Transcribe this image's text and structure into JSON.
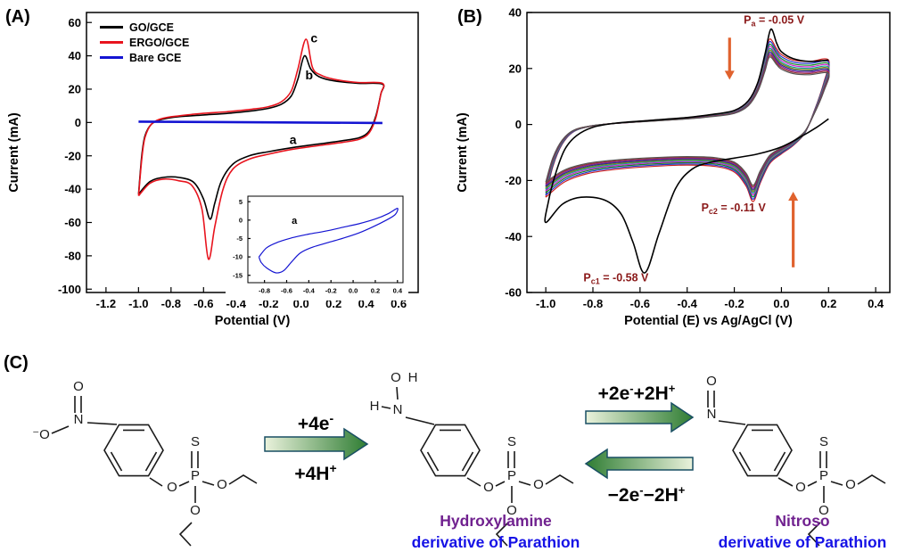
{
  "panels": {
    "a_label": "(A)",
    "b_label": "(B)",
    "c_label": "(C)"
  },
  "chart_data": [
    {
      "type": "line",
      "title": "",
      "xlabel": "Potential (V)",
      "ylabel": "Current (mA)",
      "xlim": [
        -1.32,
        0.72
      ],
      "ylim": [
        -102,
        66
      ],
      "xticks": [
        -1.2,
        -1.0,
        -0.8,
        -0.6,
        -0.4,
        -0.2,
        0.0,
        0.2,
        0.4,
        0.6
      ],
      "xtick_labels": [
        "-1.2",
        "-1.0",
        "-0.8",
        "-0.6",
        "-0.4",
        "-0.2",
        "0.0",
        "0.2",
        "0.4",
        "0.6"
      ],
      "yticks": [
        -100,
        -80,
        -60,
        -40,
        -20,
        0,
        20,
        40,
        60
      ],
      "ytick_labels": [
        "-100",
        "-80",
        "-60",
        "-40",
        "-20",
        "0",
        "20",
        "40",
        "60"
      ],
      "legend": [
        {
          "label": "GO/GCE",
          "color": "#000000"
        },
        {
          "label": "ERGO/GCE",
          "color": "#e8141e"
        },
        {
          "label": "Bare GCE",
          "color": "#1414d2"
        }
      ],
      "series": [
        {
          "name": "GO/GCE",
          "color": "#000000",
          "width": 1.6,
          "points": [
            [
              -1.0,
              -43
            ],
            [
              -0.98,
              -20
            ],
            [
              -0.96,
              -8
            ],
            [
              -0.92,
              -1
            ],
            [
              -0.85,
              2
            ],
            [
              -0.75,
              3.5
            ],
            [
              -0.6,
              4.5
            ],
            [
              -0.45,
              5.5
            ],
            [
              -0.3,
              7
            ],
            [
              -0.2,
              8.5
            ],
            [
              -0.12,
              11
            ],
            [
              -0.06,
              16
            ],
            [
              -0.02,
              26
            ],
            [
              0.02,
              40
            ],
            [
              0.06,
              32
            ],
            [
              0.11,
              27.5
            ],
            [
              0.2,
              25
            ],
            [
              0.35,
              23.5
            ],
            [
              0.5,
              23
            ],
            [
              0.49,
              17
            ],
            [
              0.46,
              4
            ],
            [
              0.42,
              -5
            ],
            [
              0.36,
              -9
            ],
            [
              0.25,
              -11
            ],
            [
              0.1,
              -13
            ],
            [
              -0.05,
              -15
            ],
            [
              -0.2,
              -17.5
            ],
            [
              -0.32,
              -20
            ],
            [
              -0.42,
              -25
            ],
            [
              -0.49,
              -35
            ],
            [
              -0.53,
              -48
            ],
            [
              -0.56,
              -58
            ],
            [
              -0.6,
              -46
            ],
            [
              -0.66,
              -36
            ],
            [
              -0.75,
              -33
            ],
            [
              -0.85,
              -33
            ],
            [
              -0.93,
              -35.5
            ],
            [
              -1.0,
              -43
            ]
          ]
        },
        {
          "name": "ERGO/GCE",
          "color": "#e8141e",
          "width": 1.6,
          "points": [
            [
              -1.0,
              -44
            ],
            [
              -0.98,
              -22
            ],
            [
              -0.96,
              -9
            ],
            [
              -0.92,
              -1
            ],
            [
              -0.85,
              2.5
            ],
            [
              -0.75,
              4
            ],
            [
              -0.6,
              5.5
            ],
            [
              -0.45,
              6.5
            ],
            [
              -0.3,
              8
            ],
            [
              -0.2,
              9.5
            ],
            [
              -0.12,
              12.5
            ],
            [
              -0.06,
              19
            ],
            [
              -0.02,
              32
            ],
            [
              0.03,
              50
            ],
            [
              0.07,
              33
            ],
            [
              0.12,
              28.5
            ],
            [
              0.2,
              26
            ],
            [
              0.35,
              24
            ],
            [
              0.5,
              23.5
            ],
            [
              0.49,
              17
            ],
            [
              0.46,
              3
            ],
            [
              0.42,
              -6
            ],
            [
              0.36,
              -10
            ],
            [
              0.25,
              -12
            ],
            [
              0.1,
              -14
            ],
            [
              -0.05,
              -16
            ],
            [
              -0.2,
              -19
            ],
            [
              -0.32,
              -22
            ],
            [
              -0.42,
              -28
            ],
            [
              -0.48,
              -40
            ],
            [
              -0.53,
              -62
            ],
            [
              -0.57,
              -82
            ],
            [
              -0.61,
              -52
            ],
            [
              -0.67,
              -38
            ],
            [
              -0.75,
              -35
            ],
            [
              -0.85,
              -34
            ],
            [
              -0.93,
              -36.5
            ],
            [
              -1.0,
              -44
            ]
          ]
        },
        {
          "name": "Bare GCE",
          "color": "#1414d2",
          "width": 2.6,
          "points": [
            [
              -1.0,
              0.5
            ],
            [
              0.5,
              -0.3
            ]
          ]
        }
      ],
      "annotations": [
        {
          "type": "text",
          "text": "a",
          "x": -0.05,
          "y": -13,
          "size": 14,
          "color": "#000000"
        },
        {
          "type": "text",
          "text": "b",
          "x": 0.05,
          "y": 26,
          "size": 14,
          "color": "#000000"
        },
        {
          "type": "text",
          "text": "c",
          "x": 0.08,
          "y": 48,
          "size": 14,
          "color": "#000000"
        }
      ],
      "inset": {
        "xlim": [
          -0.95,
          0.45
        ],
        "ylim": [
          -17,
          6.5
        ],
        "xticks": [
          -0.8,
          -0.6,
          -0.4,
          -0.2,
          0.0,
          0.2,
          0.4
        ],
        "xtick_labels": [
          "-0.8",
          "-0.6",
          "-0.4",
          "-0.2",
          "0.0",
          "0.2",
          "0.4"
        ],
        "yticks": [
          -15,
          -10,
          -5,
          0,
          5
        ],
        "ytick_labels": [
          "-15",
          "-10",
          "-5",
          "0",
          "5"
        ],
        "series": [
          {
            "name": "bare-gce-inset",
            "color": "#1414d2",
            "width": 1.2,
            "points": [
              [
                -0.85,
                -10
              ],
              [
                -0.78,
                -7.5
              ],
              [
                -0.68,
                -6
              ],
              [
                -0.55,
                -4.8
              ],
              [
                -0.4,
                -3.8
              ],
              [
                -0.25,
                -3
              ],
              [
                -0.1,
                -2
              ],
              [
                0.05,
                -1
              ],
              [
                0.2,
                0.3
              ],
              [
                0.32,
                1.8
              ],
              [
                0.4,
                3.2
              ],
              [
                0.38,
                1.5
              ],
              [
                0.3,
                0
              ],
              [
                0.18,
                -1.8
              ],
              [
                0.05,
                -3.5
              ],
              [
                -0.1,
                -5
              ],
              [
                -0.25,
                -6.3
              ],
              [
                -0.38,
                -7.5
              ],
              [
                -0.48,
                -9
              ],
              [
                -0.56,
                -11.5
              ],
              [
                -0.63,
                -13.8
              ],
              [
                -0.7,
                -14.3
              ],
              [
                -0.78,
                -13
              ],
              [
                -0.83,
                -11.5
              ],
              [
                -0.85,
                -10
              ]
            ]
          }
        ],
        "annotations": [
          {
            "type": "text",
            "text": "a",
            "x": -0.53,
            "y": -1.0,
            "size": 11,
            "color": "#000000"
          }
        ]
      }
    },
    {
      "type": "line",
      "title": "",
      "xlabel": "Potential (E) vs Ag/AgCl (V)",
      "ylabel": "Current (mA)",
      "xlim": [
        -1.08,
        0.46
      ],
      "ylim": [
        -60,
        40
      ],
      "xticks": [
        -1.0,
        -0.8,
        -0.6,
        -0.4,
        -0.2,
        0.0,
        0.2,
        0.4
      ],
      "xtick_labels": [
        "-1.0",
        "-0.8",
        "-0.6",
        "-0.4",
        "-0.2",
        "0.0",
        "0.2",
        "0.4"
      ],
      "yticks": [
        -60,
        -40,
        -20,
        0,
        20,
        40
      ],
      "ytick_labels": [
        "-60",
        "-40",
        "-20",
        "0",
        "20",
        "40"
      ],
      "series": [
        {
          "name": "cycle-1",
          "color": "#000000",
          "width": 1.6,
          "points": [
            [
              0.2,
              2
            ],
            [
              0.15,
              -1
            ],
            [
              0.08,
              -4.5
            ],
            [
              0.0,
              -8
            ],
            [
              -0.1,
              -10.5
            ],
            [
              -0.2,
              -12
            ],
            [
              -0.3,
              -13.5
            ],
            [
              -0.38,
              -16
            ],
            [
              -0.45,
              -23
            ],
            [
              -0.52,
              -39
            ],
            [
              -0.58,
              -53
            ],
            [
              -0.63,
              -42
            ],
            [
              -0.68,
              -32
            ],
            [
              -0.75,
              -27
            ],
            [
              -0.85,
              -26
            ],
            [
              -0.93,
              -28.5
            ],
            [
              -1.0,
              -35
            ],
            [
              -0.99,
              -28
            ],
            [
              -0.96,
              -18
            ],
            [
              -0.92,
              -9
            ],
            [
              -0.87,
              -4
            ],
            [
              -0.8,
              -1
            ],
            [
              -0.7,
              0.5
            ],
            [
              -0.55,
              1.5
            ],
            [
              -0.4,
              2.5
            ],
            [
              -0.3,
              3.5
            ],
            [
              -0.2,
              5
            ],
            [
              -0.14,
              8.5
            ],
            [
              -0.1,
              15
            ],
            [
              -0.07,
              25
            ],
            [
              -0.045,
              34
            ],
            [
              -0.02,
              29
            ],
            [
              0.0,
              26
            ],
            [
              0.05,
              23.5
            ],
            [
              0.12,
              22.5
            ],
            [
              0.2,
              23
            ]
          ]
        }
      ],
      "stable_cycle": {
        "width": 1.2,
        "points": [
          [
            -1.0,
            -26
          ],
          [
            -0.97,
            -15
          ],
          [
            -0.93,
            -7
          ],
          [
            -0.88,
            -2.5
          ],
          [
            -0.8,
            -0.5
          ],
          [
            -0.7,
            0.5
          ],
          [
            -0.55,
            1.5
          ],
          [
            -0.4,
            2.5
          ],
          [
            -0.3,
            3.5
          ],
          [
            -0.2,
            5
          ],
          [
            -0.14,
            8.5
          ],
          [
            -0.1,
            15
          ],
          [
            -0.07,
            24
          ],
          [
            -0.05,
            30.5
          ],
          [
            -0.02,
            27
          ],
          [
            0.0,
            25
          ],
          [
            0.05,
            23
          ],
          [
            0.12,
            22.5
          ],
          [
            0.2,
            23
          ],
          [
            0.18,
            15
          ],
          [
            0.14,
            5
          ],
          [
            0.1,
            -3
          ],
          [
            0.05,
            -7.5
          ],
          [
            0.0,
            -10.5
          ],
          [
            -0.05,
            -14
          ],
          [
            -0.09,
            -21
          ],
          [
            -0.12,
            -27.5
          ],
          [
            -0.15,
            -22
          ],
          [
            -0.2,
            -17
          ],
          [
            -0.28,
            -15
          ],
          [
            -0.4,
            -14.5
          ],
          [
            -0.55,
            -15
          ],
          [
            -0.7,
            -16
          ],
          [
            -0.82,
            -17.5
          ],
          [
            -0.92,
            -20.5
          ],
          [
            -1.0,
            -26
          ]
        ],
        "scales": [
          1.0,
          0.97,
          0.94,
          0.915,
          0.89,
          0.87,
          0.85,
          0.83,
          0.81,
          0.79
        ],
        "colors": [
          "#cc2222",
          "#2233cc",
          "#118822",
          "#cc22cc",
          "#119999",
          "#888811",
          "#223388",
          "#882299",
          "#993333",
          "#555555"
        ]
      },
      "annotations": [
        {
          "type": "text_sub",
          "base": "P",
          "sub": "a",
          "rest": " = -0.05 V",
          "x": -0.16,
          "y": 36,
          "size": 12.5,
          "color": "#8b1a1a",
          "anchor": "start"
        },
        {
          "type": "text_sub",
          "base": "P",
          "sub": "c2",
          "rest": " = -0.11 V",
          "x": -0.34,
          "y": -31,
          "size": 12.5,
          "color": "#8b1a1a",
          "anchor": "start"
        },
        {
          "type": "text_sub",
          "base": "P",
          "sub": "c1",
          "rest": " = -0.58 V",
          "x": -0.84,
          "y": -56,
          "size": 12.5,
          "color": "#8b1a1a",
          "anchor": "start"
        },
        {
          "type": "arrow",
          "x": -0.22,
          "y1": 31,
          "y2": 16,
          "color": "#e0622e",
          "width": 3.2
        },
        {
          "type": "arrow",
          "x": 0.05,
          "y1": -51,
          "y2": -24,
          "color": "#e0622e",
          "width": 3.2
        }
      ]
    }
  ],
  "scheme": {
    "colors": {
      "purple": "#70218f",
      "blue": "#1612e6",
      "arrow_light": "#eaf2dc",
      "arrow_dark": "#2f7d33",
      "arrow_stroke": "#194f63"
    },
    "arrow1_top": {
      "main": "+4e",
      "sup": "-"
    },
    "arrow1_bottom": {
      "main": "+4H",
      "sup": "+"
    },
    "arrow2_label": {
      "m1": "+2e",
      "s1": "-",
      "m2": "+2H",
      "s2": "+"
    },
    "arrow3_label": {
      "m1": "−2e",
      "s1": "-",
      "m2": "−2H",
      "s2": "+"
    },
    "caption_mid": {
      "line1": "Hydroxylamine",
      "line2": "derivative of Parathion"
    },
    "caption_right": {
      "line1": "Nitroso",
      "line2": "derivative of Parathion"
    },
    "molecules": {
      "m1": {
        "o_top": "O",
        "n": "N",
        "o_minus": "⁻O",
        "o_link": "O",
        "s": "S",
        "p": "P",
        "o_r": "O",
        "o_d": "O"
      },
      "m2": {
        "o_top": "O",
        "h_top": "H",
        "h_left": "H",
        "n": "N",
        "o_link": "O",
        "s": "S",
        "p": "P",
        "o_r": "O",
        "o_d": "O"
      },
      "m3": {
        "o_top": "O",
        "n": "N",
        "o_link": "O",
        "s": "S",
        "p": "P",
        "o_r": "O",
        "o_d": "O"
      }
    }
  }
}
